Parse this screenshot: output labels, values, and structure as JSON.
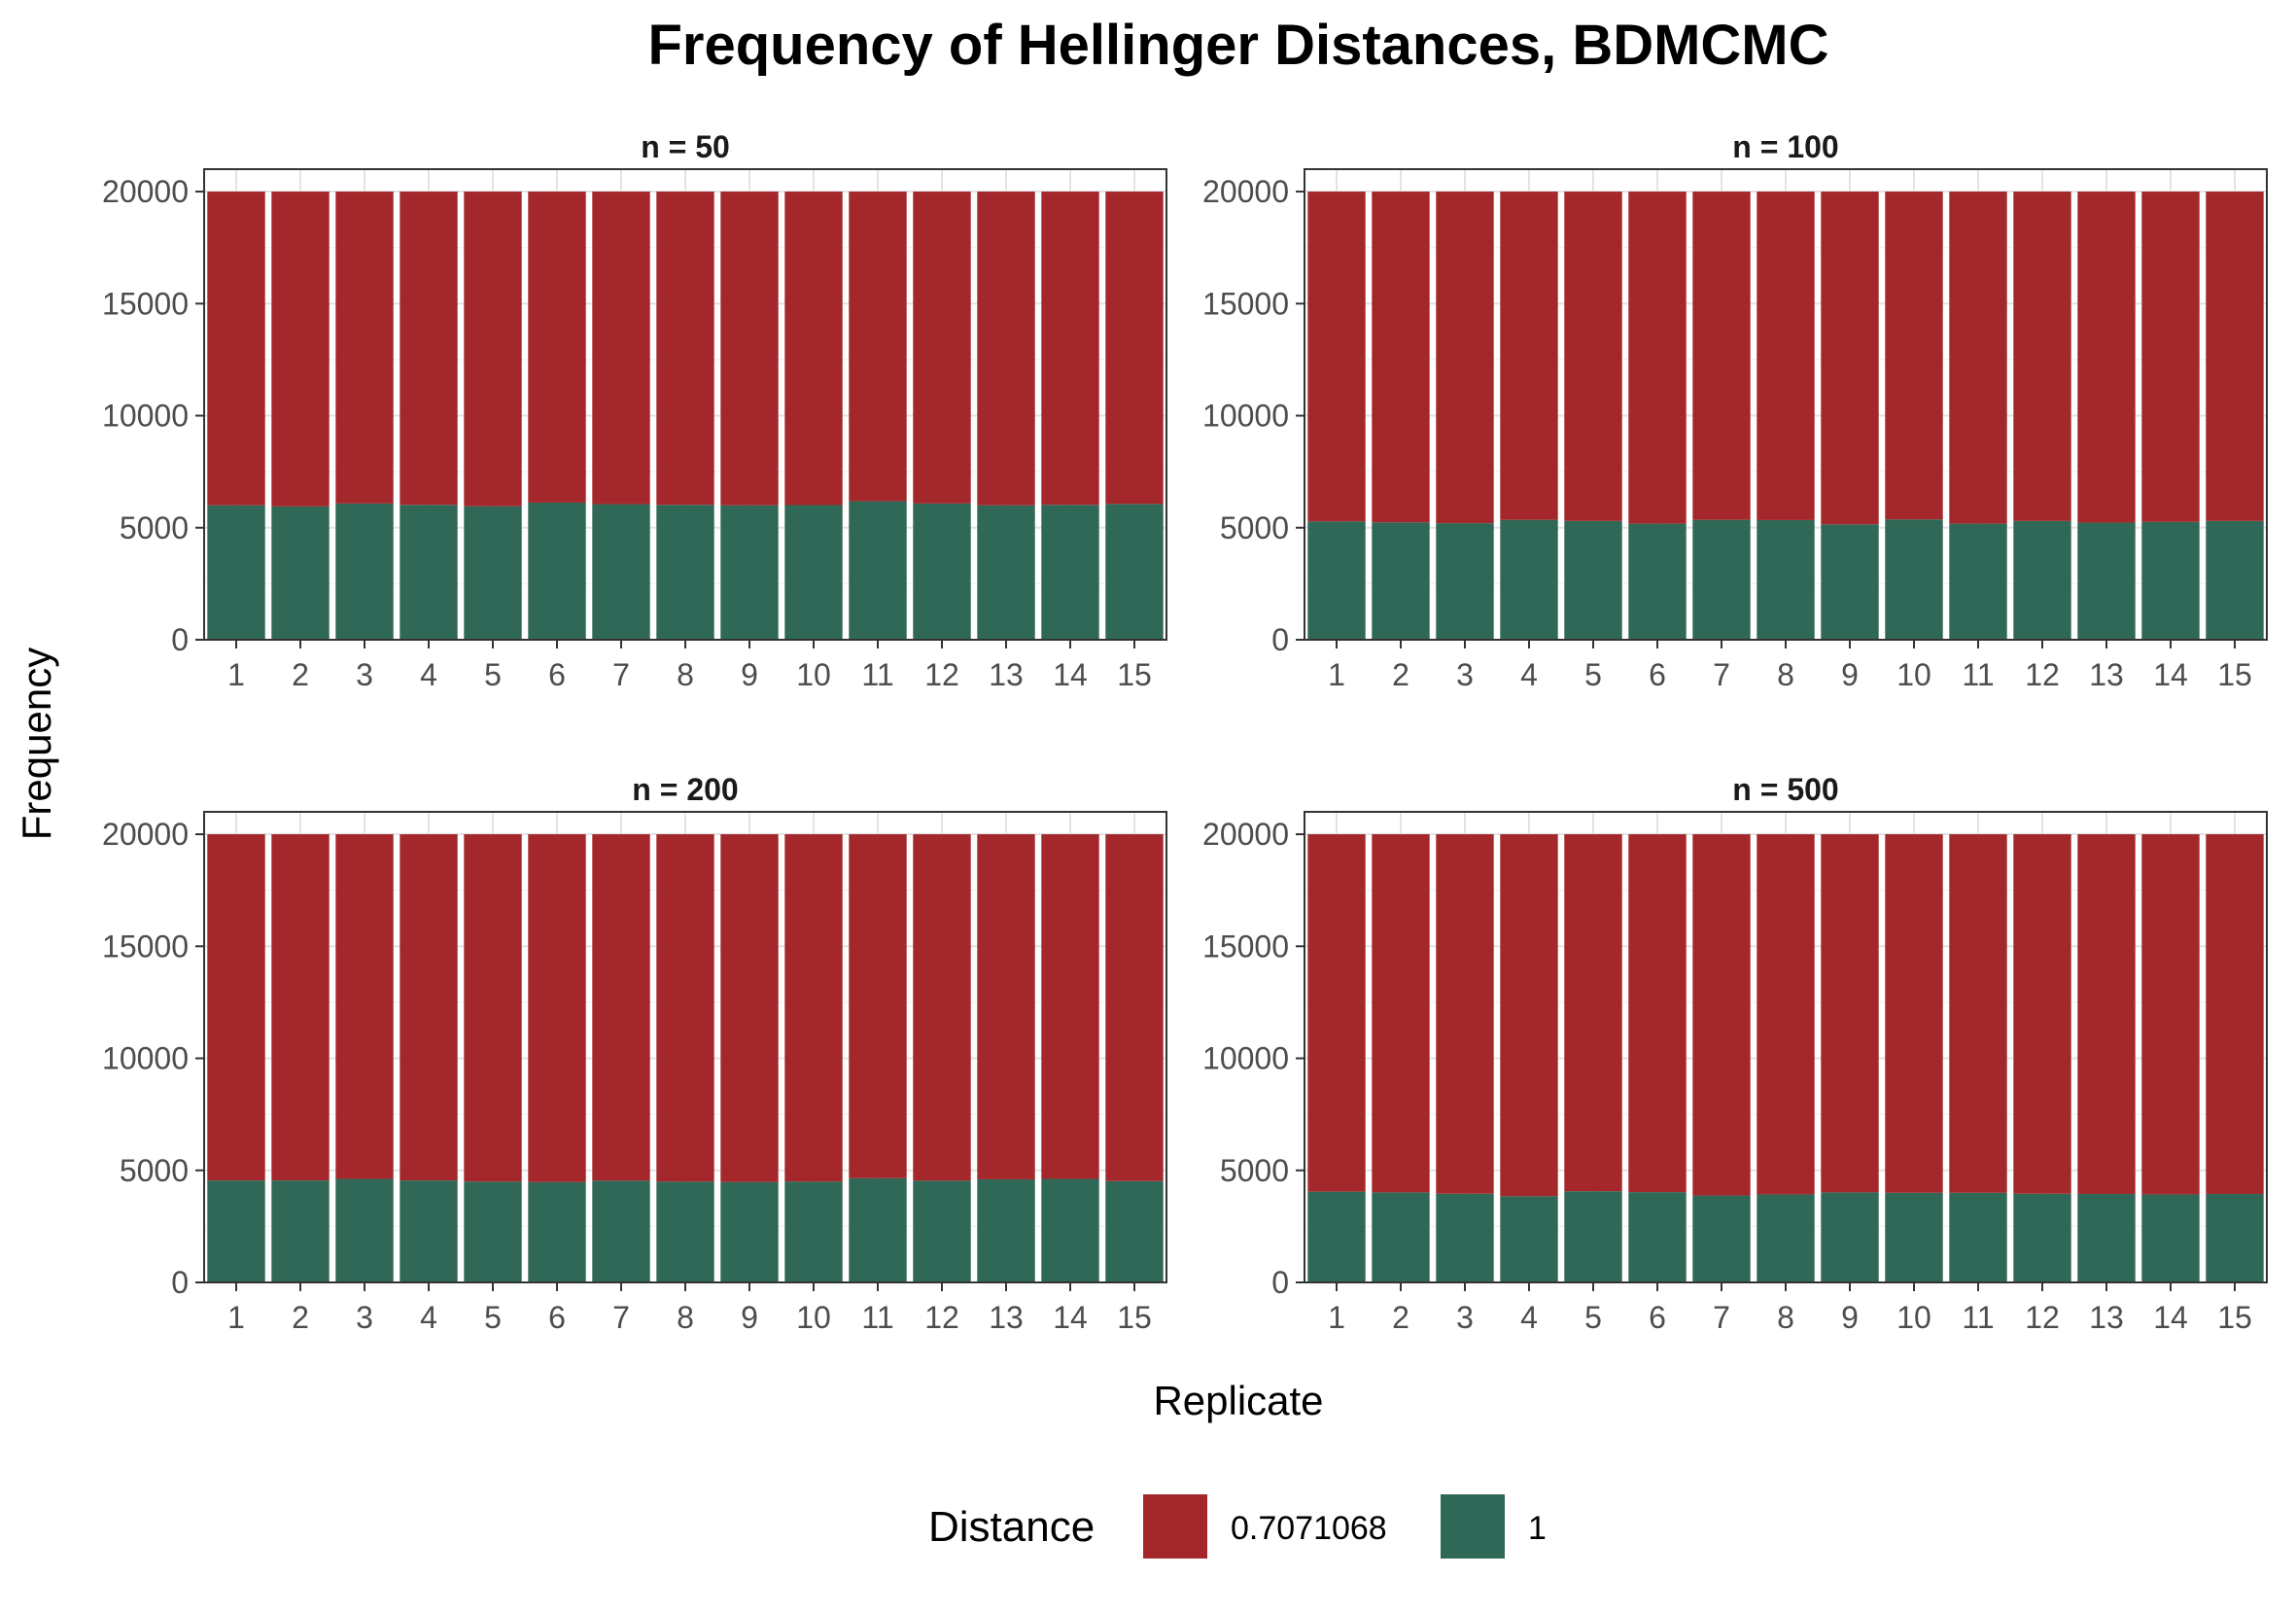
{
  "chart_data": {
    "type": "bar",
    "stacked": true,
    "title": "Frequency of Hellinger Distances, BDMCMC",
    "xlabel": "Replicate",
    "ylabel": "Frequency",
    "ylim": [
      0,
      21000
    ],
    "yticks": [
      0,
      5000,
      10000,
      15000,
      20000
    ],
    "grid": true,
    "legend": {
      "title": "Distance",
      "placement": "bottom",
      "entries": [
        {
          "label": "0.7071068",
          "color": "#a4282b"
        },
        {
          "label": "1",
          "color": "#2f6856"
        }
      ]
    },
    "categories": [
      "1",
      "2",
      "3",
      "4",
      "5",
      "6",
      "7",
      "8",
      "9",
      "10",
      "11",
      "12",
      "13",
      "14",
      "15"
    ],
    "panels": [
      {
        "title": "n = 50",
        "series": [
          {
            "name": "1",
            "values": [
              6000,
              5950,
              6080,
              6020,
              5960,
              6120,
              6050,
              6020,
              6000,
              6010,
              6180,
              6080,
              6000,
              6020,
              6060
            ]
          },
          {
            "name": "0.7071068",
            "values": [
              14000,
              14050,
              13920,
              13980,
              14040,
              13880,
              13950,
              13980,
              14000,
              13990,
              13820,
              13920,
              14000,
              13980,
              13940
            ]
          }
        ]
      },
      {
        "title": "n = 100",
        "series": [
          {
            "name": "1",
            "values": [
              5280,
              5240,
              5200,
              5350,
              5300,
              5180,
              5350,
              5340,
              5150,
              5370,
              5180,
              5300,
              5230,
              5260,
              5300
            ]
          },
          {
            "name": "0.7071068",
            "values": [
              14720,
              14760,
              14800,
              14650,
              14700,
              14820,
              14650,
              14660,
              14850,
              14630,
              14820,
              14700,
              14770,
              14740,
              14700
            ]
          }
        ]
      },
      {
        "title": "n = 200",
        "series": [
          {
            "name": "1",
            "values": [
              4550,
              4550,
              4620,
              4550,
              4500,
              4480,
              4540,
              4500,
              4480,
              4500,
              4650,
              4540,
              4600,
              4620,
              4520
            ]
          },
          {
            "name": "0.7071068",
            "values": [
              15450,
              15450,
              15380,
              15450,
              15500,
              15520,
              15460,
              15500,
              15520,
              15500,
              15350,
              15460,
              15400,
              15380,
              15480
            ]
          }
        ]
      },
      {
        "title": "n = 500",
        "series": [
          {
            "name": "1",
            "values": [
              4050,
              4020,
              3960,
              3850,
              4070,
              4030,
              3880,
              3930,
              4020,
              4000,
              4000,
              3960,
              3950,
              3930,
              3950
            ]
          },
          {
            "name": "0.7071068",
            "values": [
              15950,
              15980,
              16040,
              16150,
              15930,
              15970,
              16120,
              16070,
              15980,
              16000,
              16000,
              16040,
              16050,
              16070,
              16050
            ]
          }
        ]
      }
    ]
  }
}
